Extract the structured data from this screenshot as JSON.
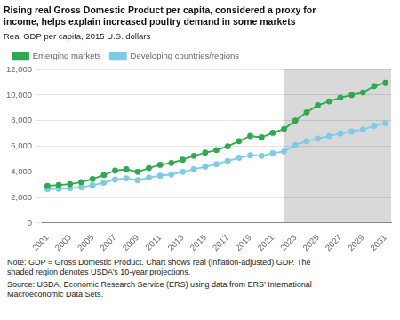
{
  "chart_data": {
    "type": "line",
    "title": "Rising real Gross Domestic Product per capita, considered a proxy for\nincome, helps explain increased poultry demand in some markets",
    "ylabel": "Real GDP per capita, 2015 U.S. dollars",
    "x": [
      2001,
      2002,
      2003,
      2004,
      2005,
      2006,
      2007,
      2008,
      2009,
      2010,
      2011,
      2012,
      2013,
      2014,
      2015,
      2016,
      2017,
      2018,
      2019,
      2020,
      2021,
      2022,
      2023,
      2024,
      2025,
      2026,
      2027,
      2028,
      2029,
      2030,
      2031
    ],
    "series": [
      {
        "name": "Emerging markets",
        "color": "#2eaa4e",
        "values": [
          2900,
          2970,
          3050,
          3200,
          3450,
          3750,
          4100,
          4200,
          4000,
          4300,
          4550,
          4700,
          4950,
          5250,
          5500,
          5700,
          6000,
          6400,
          6800,
          6700,
          7050,
          7350,
          8000,
          8650,
          9200,
          9500,
          9800,
          10000,
          10200,
          10700,
          10950
        ]
      },
      {
        "name": "Developing countries/regions",
        "color": "#7acde8",
        "values": [
          2650,
          2680,
          2720,
          2800,
          2950,
          3150,
          3400,
          3500,
          3350,
          3550,
          3700,
          3800,
          4000,
          4200,
          4400,
          4600,
          4850,
          5100,
          5300,
          5250,
          5450,
          5600,
          6100,
          6400,
          6600,
          6800,
          7000,
          7150,
          7300,
          7600,
          7800
        ]
      }
    ],
    "xlim": [
      2000.5,
      2031.5
    ],
    "xticks": [
      2001,
      2003,
      2005,
      2007,
      2009,
      2011,
      2013,
      2015,
      2017,
      2019,
      2021,
      2023,
      2025,
      2027,
      2029,
      2031
    ],
    "ylim": [
      0,
      12000
    ],
    "yticks": [
      0,
      {
        "value": 2000,
        "label": "2,000"
      },
      {
        "value": 4000,
        "label": "4,000"
      },
      {
        "value": 6000,
        "label": "6,000"
      },
      {
        "value": 8000,
        "label": "8,000"
      },
      {
        "value": 10000,
        "label": "10,000"
      },
      {
        "value": 12000,
        "label": "12,000"
      }
    ],
    "shaded_region": {
      "xlim": [
        2022,
        2031.5
      ],
      "color": "#d9d9d9"
    },
    "marker": "circle",
    "grid": true,
    "legend": "upper left",
    "annotations": [
      "Note: GDP = Gross Domestic Product. Chart shows real (inflation-adjusted) GDP. The\nshaded region denotes USDA’s 10-year projections.",
      "Source: USDA, Economic Research Service (ERS) using data from ERS’ International\nMacroeconomic Data Sets."
    ]
  }
}
